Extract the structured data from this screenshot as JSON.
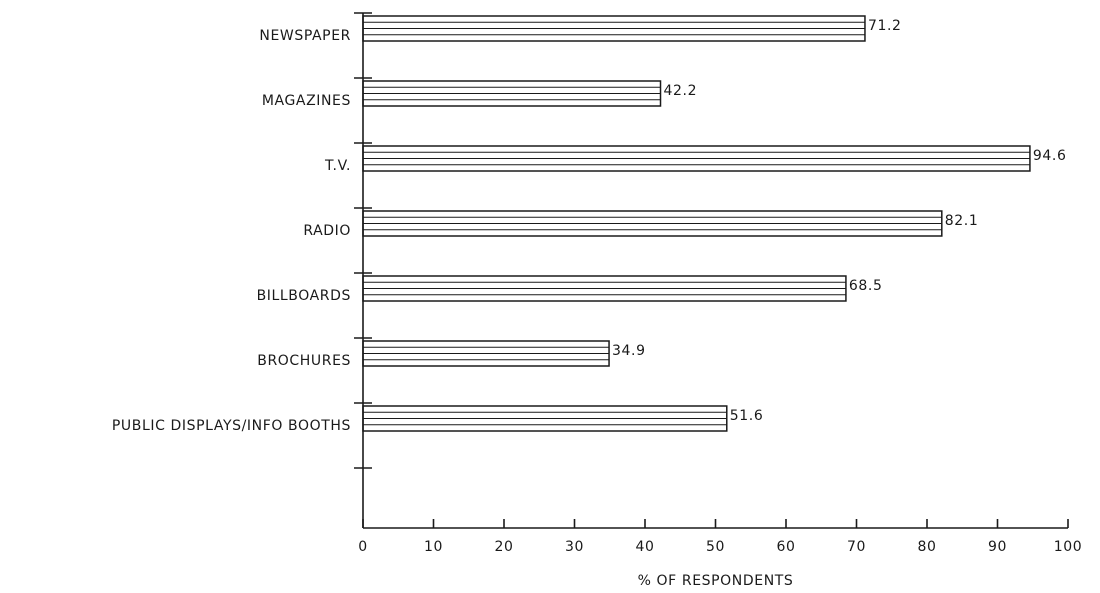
{
  "chart_data": {
    "type": "bar",
    "orientation": "horizontal",
    "categories": [
      "NEWSPAPER",
      "MAGAZINES",
      "T.V.",
      "RADIO",
      "BILLBOARDS",
      "BROCHURES",
      "PUBLIC DISPLAYS/INFO BOOTHS"
    ],
    "values": [
      71.2,
      42.2,
      94.6,
      82.1,
      68.5,
      34.9,
      51.6
    ],
    "value_labels": [
      "71.2",
      "42.2",
      "94.6",
      "82.1",
      "68.5",
      "34.9",
      "51.6"
    ],
    "xlabel": "% OF RESPONDENTS",
    "ylabel": "",
    "xlim": [
      0,
      100
    ],
    "x_ticks": [
      "0",
      "10",
      "20",
      "30",
      "40",
      "50",
      "60",
      "70",
      "80",
      "90",
      "100"
    ],
    "grid": false,
    "legend": "none",
    "colors": {
      "ink": "#1a1a1a",
      "bar_fill": "#ffffff",
      "background": "#ffffff"
    }
  }
}
